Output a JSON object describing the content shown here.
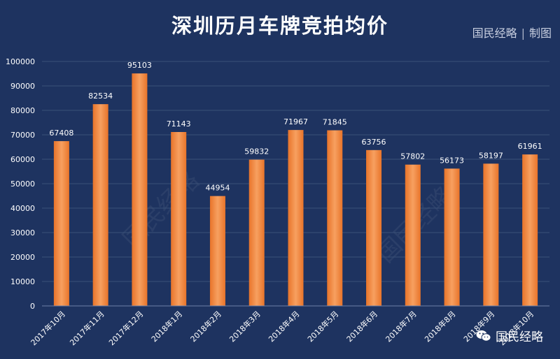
{
  "header": {
    "credit_org": "国民经略",
    "credit_sep": "|",
    "credit_action": "制图"
  },
  "brand": {
    "name": "国民经略",
    "icon": "wechat-icon"
  },
  "colors": {
    "background": "#1e3360",
    "bar": "#f28a3a",
    "bar_light": "#f7a766",
    "grid": "#3a5078",
    "text": "#ffffff"
  },
  "chart_data": {
    "type": "bar",
    "title": "深圳历月车牌竞拍均价",
    "categories": [
      "2017年10月",
      "2017年11月",
      "2017年12月",
      "2018年1月",
      "2018年2月",
      "2018年3月",
      "2018年4月",
      "2018年5月",
      "2018年6月",
      "2018年7月",
      "2018年8月",
      "2018年9月",
      "2018年10月"
    ],
    "values": [
      67408,
      82534,
      95103,
      71143,
      44954,
      59832,
      71967,
      71845,
      63756,
      57802,
      56173,
      58197,
      61961
    ],
    "yticks": [
      0,
      10000,
      20000,
      30000,
      40000,
      50000,
      60000,
      70000,
      80000,
      90000,
      100000
    ],
    "ylim": [
      0,
      100000
    ],
    "xlabel": "",
    "ylabel": "",
    "grid": true,
    "legend": "none"
  }
}
